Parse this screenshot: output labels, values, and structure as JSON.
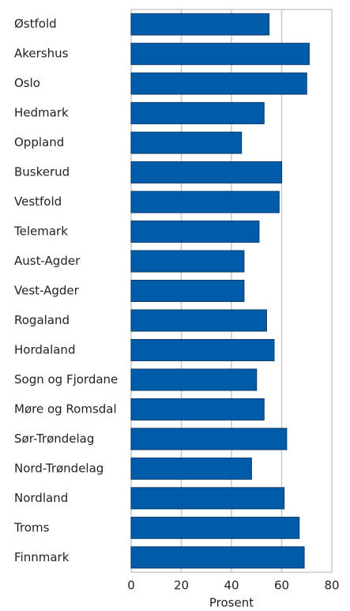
{
  "chart_data": {
    "type": "barh",
    "categories": [
      "Østfold",
      "Akershus",
      "Oslo",
      "Hedmark",
      "Oppland",
      "Buskerud",
      "Vestfold",
      "Telemark",
      "Aust-Agder",
      "Vest-Agder",
      "Rogaland",
      "Hordaland",
      "Sogn og Fjordane",
      "Møre og Romsdal",
      "Sør-Trøndelag",
      "Nord-Trøndelag",
      "Nordland",
      "Troms",
      "Finnmark"
    ],
    "values": [
      55,
      71,
      70,
      53,
      44,
      60,
      59,
      51,
      45,
      45,
      54,
      57,
      50,
      53,
      62,
      48,
      61,
      67,
      69
    ],
    "color": "#005ba8",
    "xlabel": "Prosent",
    "xlim": [
      0,
      80
    ],
    "xticks": [
      0,
      20,
      40,
      60,
      80
    ],
    "grid": true
  }
}
